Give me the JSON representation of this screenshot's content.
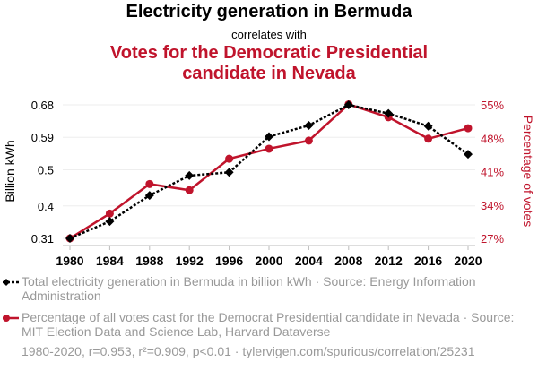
{
  "title": "Electricity generation in Bermuda",
  "subtitle": "correlates with",
  "title2_line1": "Votes for the Democratic Presidential",
  "title2_line2": "candidate in Nevada",
  "legend": [
    "Total electricity generation in Bermuda in billion kWh · Source: Energy Information Administration",
    "Percentage of all votes cast for the Democrat Presidential candidate in Nevada · Source: MIT Election Data and Science Lab, Harvard Dataverse"
  ],
  "footer": "1980-2020, r=0.953, r²=0.909, p<0.01 · tylervigen.com/spurious/correlation/25231",
  "colors": {
    "series1": "#000000",
    "series2": "#c0142c"
  },
  "chart_data": {
    "type": "line",
    "x": [
      1980,
      1984,
      1988,
      1992,
      1996,
      2000,
      2004,
      2008,
      2012,
      2016,
      2020
    ],
    "xticks": [
      "1980",
      "1984",
      "1988",
      "1992",
      "1996",
      "2000",
      "2004",
      "2008",
      "2012",
      "2016",
      "2020"
    ],
    "ylabel_left": "Billion kWh",
    "ylabel_right": "Percentage of votes",
    "ylim_left": [
      0.31,
      0.68
    ],
    "ylim_right": [
      27,
      55
    ],
    "yticks_left": [
      "0.68",
      "0.59",
      "0.5",
      "0.4",
      "0.31"
    ],
    "yticks_left_values": [
      0.68,
      0.59,
      0.5,
      0.4,
      0.31
    ],
    "yticks_right": [
      "55%",
      "48%",
      "41%",
      "34%",
      "27%"
    ],
    "yticks_right_values": [
      55,
      48,
      41,
      34,
      27
    ],
    "grid": true,
    "series": [
      {
        "name": "Electricity generation in Bermuda",
        "axis": "left",
        "values": [
          0.31,
          0.357,
          0.429,
          0.484,
          0.493,
          0.592,
          0.623,
          0.68,
          0.656,
          0.621,
          0.543
        ]
      },
      {
        "name": "Votes for the Democratic Presidential candidate in Nevada",
        "axis": "right",
        "values": [
          27.0,
          32.2,
          38.4,
          37.1,
          43.7,
          45.8,
          47.5,
          55.1,
          52.4,
          47.9,
          50.1
        ]
      }
    ]
  }
}
